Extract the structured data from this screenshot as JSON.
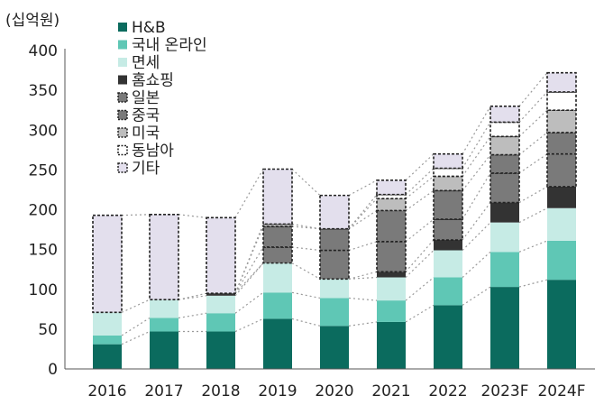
{
  "chart_data": {
    "type": "bar",
    "stacked": true,
    "unit_label": "(십억원)",
    "title": "",
    "xlabel": "",
    "ylabel": "",
    "categories": [
      "2016",
      "2017",
      "2018",
      "2019",
      "2020",
      "2021",
      "2022",
      "2023F",
      "2024F"
    ],
    "ylim": [
      0,
      400
    ],
    "yticks": [
      0,
      50,
      100,
      150,
      200,
      250,
      300,
      350,
      400
    ],
    "grid": false,
    "legend_position": "top-left",
    "connector_lines": true,
    "series": [
      {
        "name": "H&B",
        "color": "#0b6b5e",
        "dashed": false,
        "values": [
          31,
          47,
          47,
          63,
          54,
          59,
          80,
          103,
          112
        ]
      },
      {
        "name": "국내 온라인",
        "color": "#5fc7b5",
        "dashed": false,
        "values": [
          11,
          17,
          23,
          33,
          35,
          27,
          35,
          44,
          49
        ]
      },
      {
        "name": "면세",
        "color": "#c6ebe5",
        "dashed": false,
        "values": [
          29,
          23,
          22,
          37,
          24,
          29,
          34,
          37,
          41
        ]
      },
      {
        "name": "홈쇼핑",
        "color": "#333333",
        "dashed": false,
        "values": [
          0,
          0,
          3,
          0,
          0,
          7,
          13,
          25,
          27
        ]
      },
      {
        "name": "일본",
        "color": "#7a7a7a",
        "dashed": true,
        "values": [
          0,
          0,
          0,
          20,
          36,
          38,
          26,
          37,
          41
        ]
      },
      {
        "name": "중국",
        "color": "#7a7a7a",
        "dashed": true,
        "values": [
          0,
          0,
          0,
          26,
          27,
          39,
          36,
          23,
          27
        ]
      },
      {
        "name": "미국",
        "color": "#bdbdbd",
        "dashed": true,
        "values": [
          0,
          0,
          0,
          3,
          0,
          15,
          18,
          23,
          28
        ]
      },
      {
        "name": "동남아",
        "color": "#ffffff",
        "dashed": true,
        "values": [
          0,
          0,
          0,
          0,
          0,
          5,
          10,
          18,
          23
        ]
      },
      {
        "name": "기타",
        "color": "#e3dfed",
        "dashed": true,
        "values": [
          122,
          107,
          95,
          69,
          42,
          18,
          18,
          20,
          24
        ]
      }
    ]
  }
}
